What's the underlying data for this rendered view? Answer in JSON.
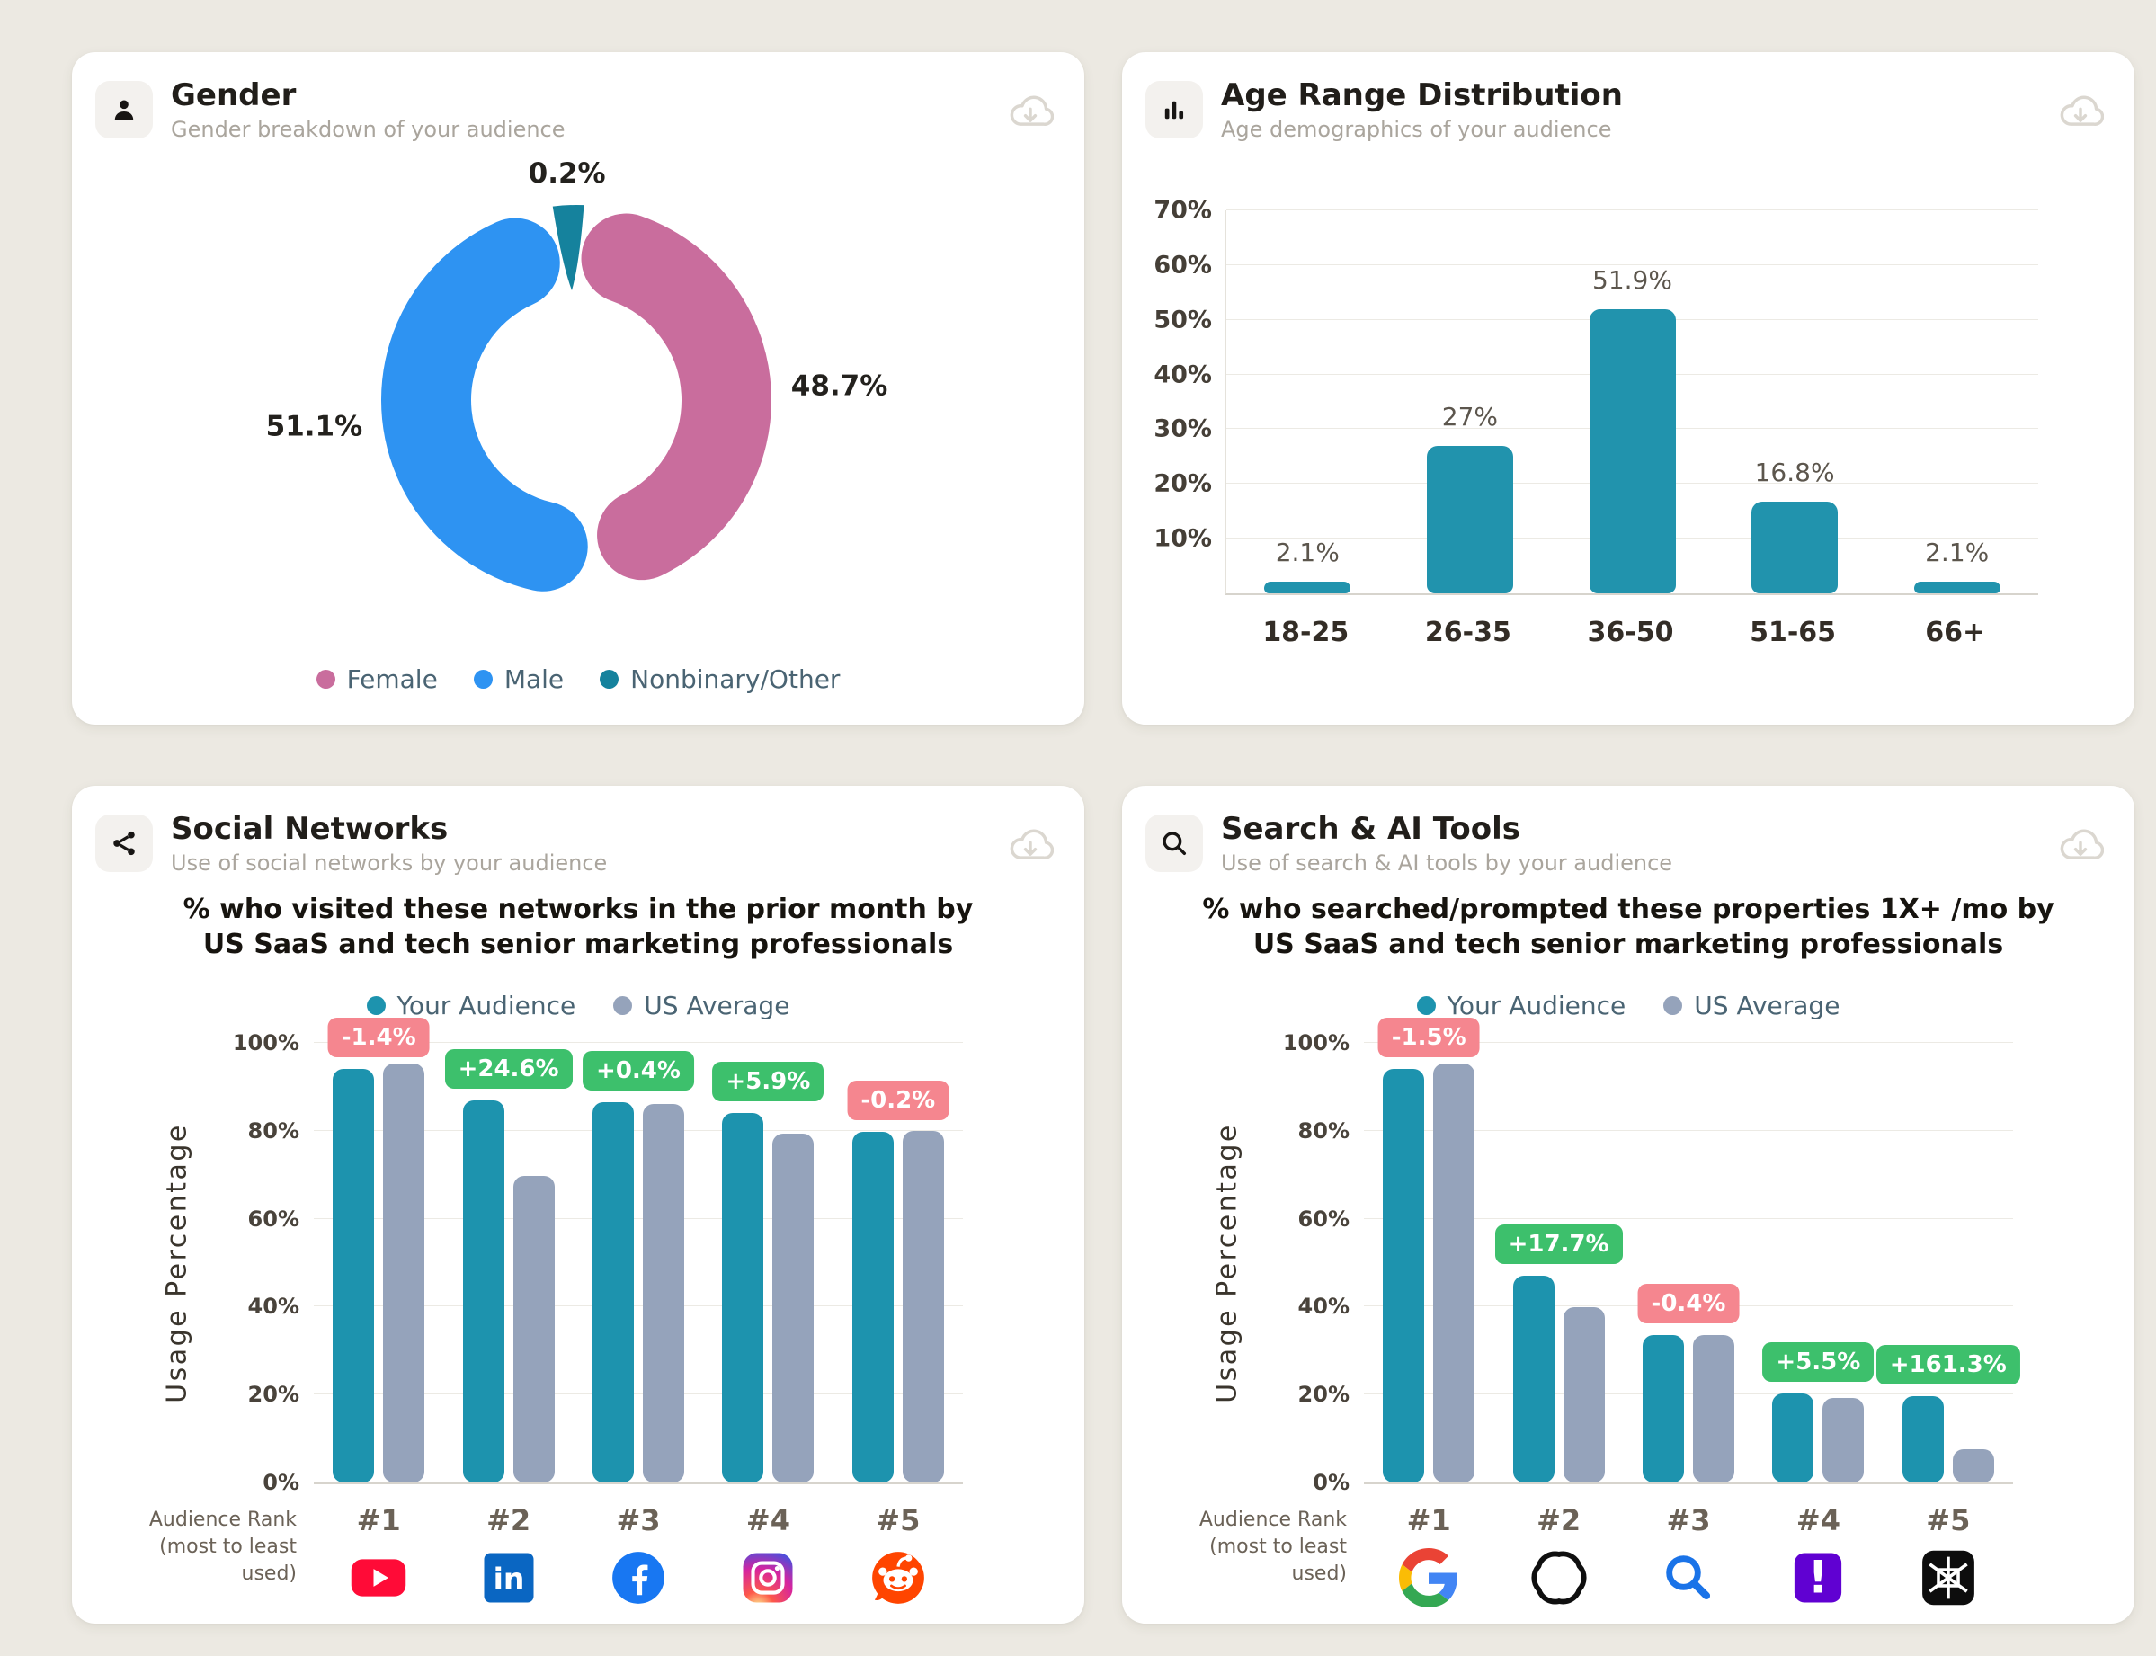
{
  "page": {
    "background": "#ece9e2"
  },
  "cards": [
    {
      "id": "gender",
      "icon": "person-icon",
      "title": "Gender",
      "subtitle": "Gender breakdown of your audience",
      "download": "download-icon"
    },
    {
      "id": "age",
      "icon": "bar-chart-icon",
      "title": "Age Range Distribution",
      "subtitle": "Age demographics of your audience",
      "download": "download-icon"
    },
    {
      "id": "social",
      "icon": "share-icon",
      "title": "Social Networks",
      "subtitle": "Use of social networks by your audience",
      "download": "download-icon"
    },
    {
      "id": "search",
      "icon": "search-icon",
      "title": "Search & AI Tools",
      "subtitle": "Use of search & AI tools by your audience",
      "download": "download-icon"
    }
  ],
  "chart_data": [
    {
      "id": "gender",
      "type": "pie",
      "donut": true,
      "legend_position": "bottom",
      "segments": [
        {
          "label": "Female",
          "value": 48.7,
          "display": "48.7%",
          "color": "#c96d9d"
        },
        {
          "label": "Male",
          "value": 51.1,
          "display": "51.1%",
          "color": "#2e93f2"
        },
        {
          "label": "Nonbinary/Other",
          "value": 0.2,
          "display": "0.2%",
          "color": "#15829d"
        }
      ]
    },
    {
      "id": "age",
      "type": "bar",
      "grid": true,
      "categories": [
        "18-25",
        "26-35",
        "36-50",
        "51-65",
        "66+"
      ],
      "values": [
        2.1,
        27,
        51.9,
        16.8,
        2.1
      ],
      "data_labels": [
        "2.1%",
        "27%",
        "51.9%",
        "16.8%",
        "2.1%"
      ],
      "ylim": [
        0,
        70
      ],
      "yticks": [
        "10%",
        "20%",
        "30%",
        "40%",
        "50%",
        "60%",
        "70%"
      ],
      "bar_color": "#2193ad"
    },
    {
      "id": "social",
      "type": "bar",
      "grid": true,
      "title_lines": [
        "% who visited these networks in the prior month by",
        "US SaaS and tech senior marketing professionals"
      ],
      "legend": [
        {
          "name": "Your Audience",
          "color": "#1d93ae"
        },
        {
          "name": "US Average",
          "color": "#95a3bb"
        }
      ],
      "categories": [
        "#1",
        "#2",
        "#3",
        "#4",
        "#5"
      ],
      "category_icons": [
        "youtube-icon",
        "linkedin-icon",
        "facebook-icon",
        "instagram-icon",
        "reddit-icon"
      ],
      "series": [
        {
          "name": "Your Audience",
          "color": "#1d93ae",
          "values": [
            94,
            87,
            86.5,
            84,
            79.8
          ]
        },
        {
          "name": "US Average",
          "color": "#95a3bb",
          "values": [
            95.4,
            69.8,
            86.1,
            79.3,
            80
          ]
        }
      ],
      "badges": [
        {
          "text": "-1.4%",
          "tone": "negative"
        },
        {
          "text": "+24.6%",
          "tone": "positive"
        },
        {
          "text": "+0.4%",
          "tone": "positive"
        },
        {
          "text": "+5.9%",
          "tone": "positive"
        },
        {
          "text": "-0.2%",
          "tone": "negative"
        }
      ],
      "ylabel": "Usage Percentage",
      "xlabel_lines": [
        "Audience Rank",
        "(most to least used)"
      ],
      "ylim": [
        0,
        100
      ],
      "yticks": [
        "0%",
        "20%",
        "40%",
        "60%",
        "80%",
        "100%"
      ]
    },
    {
      "id": "search",
      "type": "bar",
      "grid": true,
      "title_lines": [
        "% who searched/prompted these properties 1X+ /mo by",
        "US SaaS and tech senior marketing professionals"
      ],
      "legend": [
        {
          "name": "Your Audience",
          "color": "#1d93ae"
        },
        {
          "name": "US Average",
          "color": "#95a3bb"
        }
      ],
      "categories": [
        "#1",
        "#2",
        "#3",
        "#4",
        "#5"
      ],
      "category_icons": [
        "google-icon",
        "openai-icon",
        "magnifier-blue-icon",
        "yahoo-icon",
        "perplexity-icon"
      ],
      "series": [
        {
          "name": "Your Audience",
          "color": "#1d93ae",
          "values": [
            94,
            47,
            33.5,
            20.3,
            19.6
          ]
        },
        {
          "name": "US Average",
          "color": "#95a3bb",
          "values": [
            95.4,
            39.9,
            33.6,
            19.2,
            7.5
          ]
        }
      ],
      "badges": [
        {
          "text": "-1.5%",
          "tone": "negative"
        },
        {
          "text": "+17.7%",
          "tone": "positive"
        },
        {
          "text": "-0.4%",
          "tone": "negative"
        },
        {
          "text": "+5.5%",
          "tone": "positive"
        },
        {
          "text": "+161.3%",
          "tone": "positive"
        }
      ],
      "ylabel": "Usage Percentage",
      "xlabel_lines": [
        "Audience Rank",
        "(most to least used)"
      ],
      "ylim": [
        0,
        100
      ],
      "yticks": [
        "0%",
        "20%",
        "40%",
        "60%",
        "80%",
        "100%"
      ]
    }
  ],
  "colors": {
    "badge_positive": "#3dc06c",
    "badge_negative": "#f5868f",
    "bar_teal": "#1d93ae",
    "bar_gray": "#95a3bb"
  }
}
